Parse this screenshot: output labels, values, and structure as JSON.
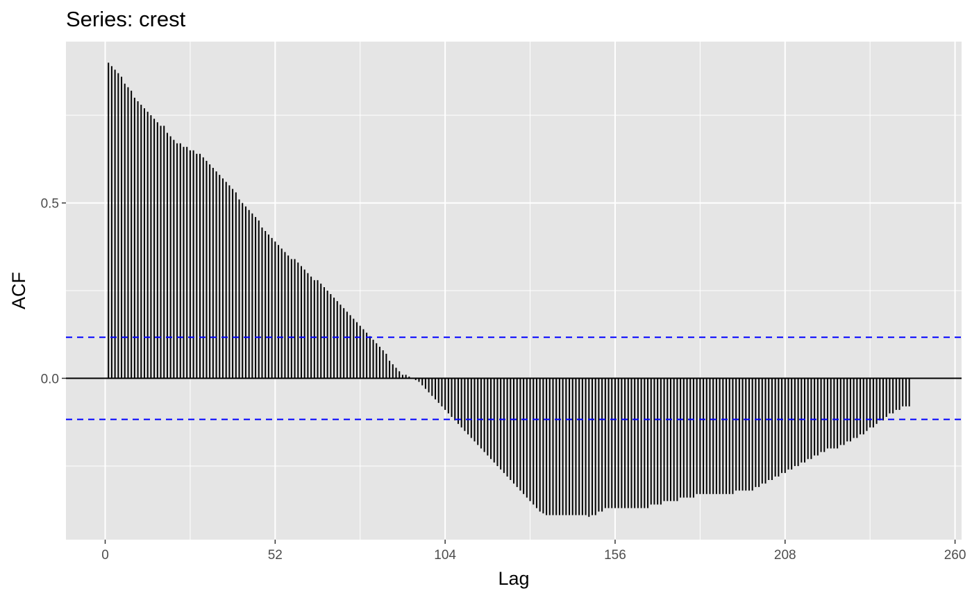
{
  "chart_data": {
    "type": "bar",
    "title": "Series: crest",
    "xlabel": "Lag",
    "ylabel": "ACF",
    "xlim": [
      -12,
      262
    ],
    "ylim": [
      -0.46,
      0.96
    ],
    "x_ticks": [
      0,
      52,
      104,
      156,
      208,
      260
    ],
    "x_tick_labels": [
      "0",
      "52",
      "104",
      "156",
      "208",
      "260"
    ],
    "y_ticks": [
      0.0,
      0.5
    ],
    "y_tick_labels": [
      "0.0",
      "0.5"
    ],
    "ci": 0.117,
    "grid": true,
    "colors": {
      "panel": "#e5e5e5",
      "grid": "#ffffff",
      "bars": "#000000",
      "ci_line": "#0000ff",
      "zero_line": "#000000"
    },
    "series": [
      {
        "x_start": 1,
        "x_step": 1,
        "values": [
          0.9,
          0.89,
          0.88,
          0.87,
          0.86,
          0.84,
          0.83,
          0.82,
          0.8,
          0.79,
          0.78,
          0.77,
          0.76,
          0.75,
          0.74,
          0.73,
          0.72,
          0.72,
          0.7,
          0.69,
          0.68,
          0.67,
          0.67,
          0.66,
          0.66,
          0.65,
          0.65,
          0.64,
          0.64,
          0.63,
          0.62,
          0.61,
          0.6,
          0.59,
          0.58,
          0.57,
          0.56,
          0.55,
          0.54,
          0.53,
          0.51,
          0.5,
          0.49,
          0.48,
          0.47,
          0.46,
          0.45,
          0.43,
          0.42,
          0.41,
          0.4,
          0.39,
          0.38,
          0.37,
          0.36,
          0.35,
          0.34,
          0.34,
          0.33,
          0.32,
          0.31,
          0.3,
          0.29,
          0.28,
          0.28,
          0.27,
          0.26,
          0.25,
          0.24,
          0.23,
          0.22,
          0.21,
          0.2,
          0.19,
          0.18,
          0.17,
          0.16,
          0.15,
          0.14,
          0.13,
          0.12,
          0.11,
          0.1,
          0.09,
          0.08,
          0.07,
          0.05,
          0.04,
          0.03,
          0.02,
          0.01,
          0.01,
          0.005,
          0.0,
          -0.005,
          -0.01,
          -0.02,
          -0.03,
          -0.04,
          -0.05,
          -0.06,
          -0.07,
          -0.08,
          -0.09,
          -0.1,
          -0.11,
          -0.12,
          -0.13,
          -0.14,
          -0.15,
          -0.16,
          -0.17,
          -0.18,
          -0.19,
          -0.2,
          -0.21,
          -0.22,
          -0.23,
          -0.24,
          -0.25,
          -0.26,
          -0.27,
          -0.28,
          -0.29,
          -0.3,
          -0.31,
          -0.32,
          -0.33,
          -0.34,
          -0.35,
          -0.36,
          -0.37,
          -0.38,
          -0.385,
          -0.39,
          -0.39,
          -0.39,
          -0.39,
          -0.39,
          -0.39,
          -0.39,
          -0.39,
          -0.39,
          -0.39,
          -0.39,
          -0.39,
          -0.39,
          -0.395,
          -0.39,
          -0.39,
          -0.38,
          -0.38,
          -0.37,
          -0.37,
          -0.37,
          -0.37,
          -0.37,
          -0.37,
          -0.37,
          -0.37,
          -0.37,
          -0.37,
          -0.37,
          -0.37,
          -0.37,
          -0.37,
          -0.36,
          -0.36,
          -0.36,
          -0.36,
          -0.35,
          -0.35,
          -0.35,
          -0.35,
          -0.35,
          -0.34,
          -0.34,
          -0.34,
          -0.34,
          -0.34,
          -0.33,
          -0.33,
          -0.33,
          -0.33,
          -0.33,
          -0.33,
          -0.33,
          -0.33,
          -0.33,
          -0.33,
          -0.33,
          -0.33,
          -0.32,
          -0.32,
          -0.32,
          -0.32,
          -0.32,
          -0.32,
          -0.31,
          -0.31,
          -0.3,
          -0.3,
          -0.29,
          -0.29,
          -0.28,
          -0.28,
          -0.27,
          -0.27,
          -0.26,
          -0.26,
          -0.25,
          -0.25,
          -0.24,
          -0.24,
          -0.23,
          -0.23,
          -0.22,
          -0.22,
          -0.21,
          -0.21,
          -0.2,
          -0.2,
          -0.2,
          -0.2,
          -0.19,
          -0.19,
          -0.18,
          -0.18,
          -0.17,
          -0.17,
          -0.16,
          -0.16,
          -0.15,
          -0.14,
          -0.14,
          -0.13,
          -0.12,
          -0.12,
          -0.11,
          -0.1,
          -0.1,
          -0.09,
          -0.09,
          -0.08,
          -0.08,
          -0.08
        ]
      }
    ]
  }
}
